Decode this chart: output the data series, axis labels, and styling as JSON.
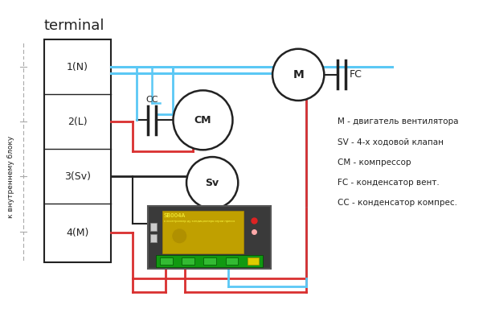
{
  "title": "terminal",
  "bg_color": "#ffffff",
  "terminal_labels": [
    "1(N)",
    "2(L)",
    "3(Sv)",
    "4(M)"
  ],
  "side_label": "к внутреннему блоку",
  "legend_lines": [
    "M - двигатель вентилятора",
    "SV - 4-х ходовой клапан",
    "CM - компрессор",
    "FC - конденсатор вент.",
    "CC - конденсатор компрес."
  ],
  "blue_color": "#5bc8f5",
  "red_color": "#d93030",
  "dark_color": "#222222",
  "board_dark": "#3d3d3d",
  "board_edge": "#555555",
  "pcb_color": "#c8a800",
  "green_color": "#22aa22",
  "yellow_text": "#ffff44"
}
